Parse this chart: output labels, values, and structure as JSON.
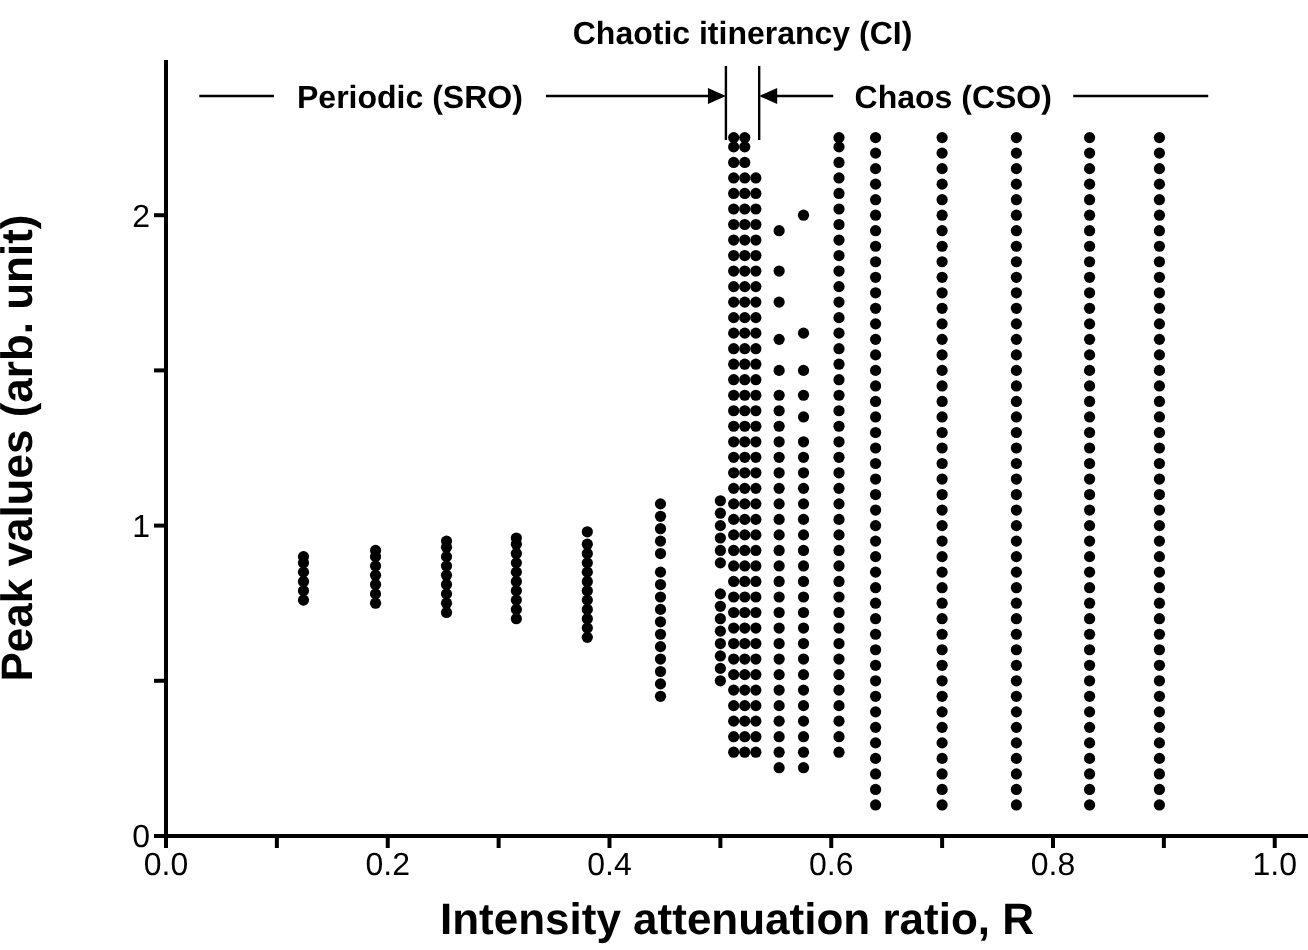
{
  "chart_data": {
    "type": "scatter",
    "xlabel": "Intensity attenuation ratio, R",
    "ylabel": "Peak values (arb. unit)",
    "xlim": [
      0,
      1.03
    ],
    "ylim": [
      0,
      2.5
    ],
    "xticks": [
      {
        "value": 0,
        "label": "0.0"
      },
      {
        "value": 0.1,
        "label": null
      },
      0.2,
      {
        "value": 0.3,
        "label": null
      },
      0.4,
      {
        "value": 0.5,
        "label": null
      },
      0.6,
      {
        "value": 0.7,
        "label": null
      },
      0.8,
      {
        "value": 0.9,
        "label": null
      },
      {
        "value": 1,
        "label": "1.0"
      }
    ],
    "yticks": [
      0,
      {
        "value": 0.5,
        "label": null
      },
      1,
      {
        "value": 1.5,
        "label": null
      },
      2
    ],
    "marker": "circle",
    "annotations": [
      "Periodic (SRO)",
      "Chaotic itinerancy (CI)",
      "Chaos (CSO)"
    ],
    "series": [
      {
        "color": "#000000",
        "x": [
          0.124,
          0.124,
          0.124,
          0.124,
          0.124,
          0.124
        ],
        "values": [
          0.76,
          0.79,
          0.82,
          0.85,
          0.88,
          0.9
        ]
      },
      {
        "color": "#000000",
        "x": [
          0.189,
          0.189,
          0.189,
          0.189,
          0.189,
          0.189,
          0.189
        ],
        "values": [
          0.75,
          0.78,
          0.81,
          0.84,
          0.87,
          0.9,
          0.92
        ]
      },
      {
        "color": "#000000",
        "x": [
          0.253,
          0.253,
          0.253,
          0.253,
          0.253,
          0.253,
          0.253,
          0.253,
          0.253
        ],
        "values": [
          0.72,
          0.75,
          0.78,
          0.81,
          0.84,
          0.87,
          0.9,
          0.93,
          0.95
        ]
      },
      {
        "color": "#000000",
        "x": [
          0.316,
          0.316,
          0.316,
          0.316,
          0.316,
          0.316,
          0.316,
          0.316,
          0.316,
          0.316
        ],
        "values": [
          0.7,
          0.73,
          0.76,
          0.79,
          0.82,
          0.85,
          0.88,
          0.91,
          0.94,
          0.96
        ]
      },
      {
        "color": "#000000",
        "x": [
          0.38,
          0.38,
          0.38,
          0.38,
          0.38,
          0.38,
          0.38,
          0.38,
          0.38,
          0.38,
          0.38,
          0.38
        ],
        "values": [
          0.64,
          0.67,
          0.7,
          0.73,
          0.76,
          0.79,
          0.82,
          0.85,
          0.88,
          0.91,
          0.94,
          0.98
        ]
      },
      {
        "color": "#000000",
        "x": [
          0.446,
          0.446,
          0.446,
          0.446,
          0.446,
          0.446,
          0.446,
          0.446,
          0.446,
          0.446,
          0.446,
          0.446,
          0.446,
          0.446,
          0.446,
          0.446
        ],
        "values": [
          0.45,
          0.49,
          0.53,
          0.57,
          0.61,
          0.65,
          0.69,
          0.73,
          0.77,
          0.81,
          0.85,
          0.91,
          0.95,
          0.99,
          1.03,
          1.07
        ]
      },
      {
        "color": "#000000",
        "x": [
          0.5,
          0.5,
          0.5,
          0.5,
          0.5,
          0.5,
          0.5,
          0.5,
          0.5,
          0.5,
          0.5,
          0.5,
          0.5,
          0.5
        ],
        "values": [
          0.5,
          0.54,
          0.58,
          0.62,
          0.66,
          0.7,
          0.74,
          0.78,
          0.88,
          0.92,
          0.96,
          1,
          1.04,
          1.08
        ]
      },
      {
        "color": "#000000",
        "x": [
          0.512,
          0.512,
          0.512,
          0.512,
          0.512,
          0.512,
          0.512,
          0.512,
          0.512,
          0.512,
          0.512,
          0.512,
          0.512,
          0.512,
          0.512,
          0.512,
          0.512,
          0.512,
          0.512,
          0.512,
          0.512,
          0.512,
          0.512,
          0.512,
          0.512,
          0.512,
          0.512,
          0.512,
          0.512,
          0.512,
          0.512,
          0.512,
          0.512,
          0.512,
          0.512,
          0.512,
          0.512,
          0.512,
          0.512,
          0.512,
          0.512
        ],
        "values": [
          0.27,
          0.32,
          0.37,
          0.42,
          0.47,
          0.52,
          0.57,
          0.62,
          0.67,
          0.72,
          0.77,
          0.82,
          0.87,
          0.92,
          0.97,
          1.02,
          1.07,
          1.12,
          1.17,
          1.22,
          1.27,
          1.32,
          1.37,
          1.42,
          1.47,
          1.52,
          1.57,
          1.62,
          1.67,
          1.72,
          1.77,
          1.82,
          1.87,
          1.92,
          1.97,
          2.02,
          2.07,
          2.12,
          2.17,
          2.22,
          2.25
        ]
      },
      {
        "color": "#000000",
        "x": [
          0.522,
          0.522,
          0.522,
          0.522,
          0.522,
          0.522,
          0.522,
          0.522,
          0.522,
          0.522,
          0.522,
          0.522,
          0.522,
          0.522,
          0.522,
          0.522,
          0.522,
          0.522,
          0.522,
          0.522,
          0.522,
          0.522,
          0.522,
          0.522,
          0.522,
          0.522,
          0.522,
          0.522,
          0.522,
          0.522,
          0.522,
          0.522,
          0.522,
          0.522,
          0.522,
          0.522,
          0.522,
          0.522,
          0.522,
          0.522,
          0.522
        ],
        "values": [
          0.27,
          0.32,
          0.37,
          0.42,
          0.47,
          0.52,
          0.57,
          0.62,
          0.67,
          0.72,
          0.77,
          0.82,
          0.87,
          0.92,
          0.97,
          1.02,
          1.07,
          1.12,
          1.17,
          1.22,
          1.27,
          1.32,
          1.37,
          1.42,
          1.47,
          1.52,
          1.57,
          1.62,
          1.67,
          1.72,
          1.77,
          1.82,
          1.87,
          1.92,
          1.97,
          2.02,
          2.07,
          2.12,
          2.17,
          2.22,
          2.25
        ]
      },
      {
        "color": "#000000",
        "x": [
          0.532,
          0.532,
          0.532,
          0.532,
          0.532,
          0.532,
          0.532,
          0.532,
          0.532,
          0.532,
          0.532,
          0.532,
          0.532,
          0.532,
          0.532,
          0.532,
          0.532,
          0.532,
          0.532,
          0.532,
          0.532,
          0.532,
          0.532,
          0.532,
          0.532,
          0.532,
          0.532,
          0.532,
          0.532,
          0.532,
          0.532,
          0.532,
          0.532,
          0.532,
          0.532,
          0.532,
          0.532,
          0.532
        ],
        "values": [
          0.27,
          0.32,
          0.37,
          0.42,
          0.47,
          0.52,
          0.57,
          0.62,
          0.67,
          0.72,
          0.77,
          0.82,
          0.87,
          0.92,
          0.97,
          1.02,
          1.07,
          1.12,
          1.17,
          1.22,
          1.27,
          1.32,
          1.37,
          1.42,
          1.47,
          1.52,
          1.57,
          1.62,
          1.67,
          1.72,
          1.77,
          1.82,
          1.87,
          1.92,
          1.97,
          2.02,
          2.07,
          2.12
        ]
      },
      {
        "color": "#000000",
        "x": [
          0.553,
          0.553,
          0.553,
          0.553,
          0.553,
          0.553,
          0.553,
          0.553,
          0.553,
          0.553,
          0.553,
          0.553,
          0.553,
          0.553,
          0.553,
          0.553,
          0.553,
          0.553,
          0.553,
          0.553,
          0.553,
          0.553,
          0.553,
          0.553,
          0.553,
          0.553,
          0.553,
          0.553,
          0.553,
          0.553
        ],
        "values": [
          0.22,
          0.27,
          0.32,
          0.37,
          0.42,
          0.47,
          0.52,
          0.57,
          0.62,
          0.67,
          0.72,
          0.77,
          0.82,
          0.87,
          0.92,
          0.97,
          1.02,
          1.07,
          1.12,
          1.17,
          1.22,
          1.27,
          1.32,
          1.37,
          1.42,
          1.5,
          1.6,
          1.72,
          1.82,
          1.95
        ]
      },
      {
        "color": "#000000",
        "x": [
          0.575,
          0.575,
          0.575,
          0.575,
          0.575,
          0.575,
          0.575,
          0.575,
          0.575,
          0.575,
          0.575,
          0.575,
          0.575,
          0.575,
          0.575,
          0.575,
          0.575,
          0.575,
          0.575,
          0.575,
          0.575,
          0.575,
          0.575,
          0.575,
          0.575,
          0.575,
          0.575
        ],
        "values": [
          0.22,
          0.27,
          0.32,
          0.37,
          0.42,
          0.47,
          0.52,
          0.57,
          0.62,
          0.67,
          0.72,
          0.77,
          0.82,
          0.87,
          0.92,
          0.97,
          1.02,
          1.07,
          1.12,
          1.17,
          1.22,
          1.27,
          1.35,
          1.42,
          1.5,
          1.62,
          2
        ]
      },
      {
        "color": "#000000",
        "x": [
          0.607,
          0.607,
          0.607,
          0.607,
          0.607,
          0.607,
          0.607,
          0.607,
          0.607,
          0.607,
          0.607,
          0.607,
          0.607,
          0.607,
          0.607,
          0.607,
          0.607,
          0.607,
          0.607,
          0.607,
          0.607,
          0.607,
          0.607,
          0.607,
          0.607,
          0.607,
          0.607,
          0.607,
          0.607,
          0.607,
          0.607,
          0.607,
          0.607,
          0.607,
          0.607,
          0.607,
          0.607,
          0.607,
          0.607,
          0.607,
          0.607
        ],
        "values": [
          0.27,
          0.32,
          0.37,
          0.42,
          0.47,
          0.52,
          0.57,
          0.62,
          0.67,
          0.72,
          0.77,
          0.82,
          0.87,
          0.92,
          0.97,
          1.02,
          1.07,
          1.12,
          1.17,
          1.22,
          1.27,
          1.32,
          1.37,
          1.42,
          1.47,
          1.52,
          1.57,
          1.62,
          1.67,
          1.72,
          1.77,
          1.82,
          1.87,
          1.92,
          1.97,
          2.02,
          2.07,
          2.12,
          2.17,
          2.22,
          2.25
        ]
      },
      {
        "color": "#000000",
        "x": [
          0.64,
          0.64,
          0.64,
          0.64,
          0.64,
          0.64,
          0.64,
          0.64,
          0.64,
          0.64,
          0.64,
          0.64,
          0.64,
          0.64,
          0.64,
          0.64,
          0.64,
          0.64,
          0.64,
          0.64,
          0.64,
          0.64,
          0.64,
          0.64,
          0.64,
          0.64,
          0.64,
          0.64,
          0.64,
          0.64,
          0.64,
          0.64,
          0.64,
          0.64,
          0.64,
          0.64,
          0.64,
          0.64,
          0.64,
          0.64,
          0.64,
          0.64,
          0.64,
          0.64
        ],
        "values": [
          0.1,
          0.15,
          0.2,
          0.25,
          0.3,
          0.35,
          0.4,
          0.45,
          0.5,
          0.55,
          0.6,
          0.65,
          0.7,
          0.75,
          0.8,
          0.85,
          0.9,
          0.95,
          1,
          1.05,
          1.1,
          1.15,
          1.2,
          1.25,
          1.3,
          1.35,
          1.4,
          1.45,
          1.5,
          1.55,
          1.6,
          1.65,
          1.7,
          1.75,
          1.8,
          1.85,
          1.9,
          1.95,
          2,
          2.05,
          2.1,
          2.15,
          2.2,
          2.25
        ]
      },
      {
        "color": "#000000",
        "x": [
          0.7,
          0.7,
          0.7,
          0.7,
          0.7,
          0.7,
          0.7,
          0.7,
          0.7,
          0.7,
          0.7,
          0.7,
          0.7,
          0.7,
          0.7,
          0.7,
          0.7,
          0.7,
          0.7,
          0.7,
          0.7,
          0.7,
          0.7,
          0.7,
          0.7,
          0.7,
          0.7,
          0.7,
          0.7,
          0.7,
          0.7,
          0.7,
          0.7,
          0.7,
          0.7,
          0.7,
          0.7,
          0.7,
          0.7,
          0.7,
          0.7,
          0.7,
          0.7,
          0.7
        ],
        "values": [
          0.1,
          0.15,
          0.2,
          0.25,
          0.3,
          0.35,
          0.4,
          0.45,
          0.5,
          0.55,
          0.6,
          0.65,
          0.7,
          0.75,
          0.8,
          0.85,
          0.9,
          0.95,
          1,
          1.05,
          1.1,
          1.15,
          1.2,
          1.25,
          1.3,
          1.35,
          1.4,
          1.45,
          1.5,
          1.55,
          1.6,
          1.65,
          1.7,
          1.75,
          1.8,
          1.85,
          1.9,
          1.95,
          2,
          2.05,
          2.1,
          2.15,
          2.2,
          2.25
        ]
      },
      {
        "color": "#000000",
        "x": [
          0.767,
          0.767,
          0.767,
          0.767,
          0.767,
          0.767,
          0.767,
          0.767,
          0.767,
          0.767,
          0.767,
          0.767,
          0.767,
          0.767,
          0.767,
          0.767,
          0.767,
          0.767,
          0.767,
          0.767,
          0.767,
          0.767,
          0.767,
          0.767,
          0.767,
          0.767,
          0.767,
          0.767,
          0.767,
          0.767,
          0.767,
          0.767,
          0.767,
          0.767,
          0.767,
          0.767,
          0.767,
          0.767,
          0.767,
          0.767,
          0.767,
          0.767,
          0.767,
          0.767
        ],
        "values": [
          0.1,
          0.15,
          0.2,
          0.25,
          0.3,
          0.35,
          0.4,
          0.45,
          0.5,
          0.55,
          0.6,
          0.65,
          0.7,
          0.75,
          0.8,
          0.85,
          0.9,
          0.95,
          1,
          1.05,
          1.1,
          1.15,
          1.2,
          1.25,
          1.3,
          1.35,
          1.4,
          1.45,
          1.5,
          1.55,
          1.6,
          1.65,
          1.7,
          1.75,
          1.8,
          1.85,
          1.9,
          1.95,
          2,
          2.05,
          2.1,
          2.15,
          2.2,
          2.25
        ]
      },
      {
        "color": "#000000",
        "x": [
          0.833,
          0.833,
          0.833,
          0.833,
          0.833,
          0.833,
          0.833,
          0.833,
          0.833,
          0.833,
          0.833,
          0.833,
          0.833,
          0.833,
          0.833,
          0.833,
          0.833,
          0.833,
          0.833,
          0.833,
          0.833,
          0.833,
          0.833,
          0.833,
          0.833,
          0.833,
          0.833,
          0.833,
          0.833,
          0.833,
          0.833,
          0.833,
          0.833,
          0.833,
          0.833,
          0.833,
          0.833,
          0.833,
          0.833,
          0.833,
          0.833,
          0.833,
          0.833,
          0.833
        ],
        "values": [
          0.1,
          0.15,
          0.2,
          0.25,
          0.3,
          0.35,
          0.4,
          0.45,
          0.5,
          0.55,
          0.6,
          0.65,
          0.7,
          0.75,
          0.8,
          0.85,
          0.9,
          0.95,
          1,
          1.05,
          1.1,
          1.15,
          1.2,
          1.25,
          1.3,
          1.35,
          1.4,
          1.45,
          1.5,
          1.55,
          1.6,
          1.65,
          1.7,
          1.75,
          1.8,
          1.85,
          1.9,
          1.95,
          2,
          2.05,
          2.1,
          2.15,
          2.2,
          2.25
        ]
      },
      {
        "color": "#000000",
        "x": [
          0.896,
          0.896,
          0.896,
          0.896,
          0.896,
          0.896,
          0.896,
          0.896,
          0.896,
          0.896,
          0.896,
          0.896,
          0.896,
          0.896,
          0.896,
          0.896,
          0.896,
          0.896,
          0.896,
          0.896,
          0.896,
          0.896,
          0.896,
          0.896,
          0.896,
          0.896,
          0.896,
          0.896,
          0.896,
          0.896,
          0.896,
          0.896,
          0.896,
          0.896,
          0.896,
          0.896,
          0.896,
          0.896,
          0.896,
          0.896,
          0.896,
          0.896,
          0.896,
          0.896
        ],
        "values": [
          0.1,
          0.15,
          0.2,
          0.25,
          0.3,
          0.35,
          0.4,
          0.45,
          0.5,
          0.55,
          0.6,
          0.65,
          0.7,
          0.75,
          0.8,
          0.85,
          0.9,
          0.95,
          1,
          1.05,
          1.1,
          1.15,
          1.2,
          1.25,
          1.3,
          1.35,
          1.4,
          1.45,
          1.5,
          1.55,
          1.6,
          1.65,
          1.7,
          1.75,
          1.8,
          1.85,
          1.9,
          1.95,
          2,
          2.05,
          2.1,
          2.15,
          2.2,
          2.25
        ]
      }
    ]
  }
}
